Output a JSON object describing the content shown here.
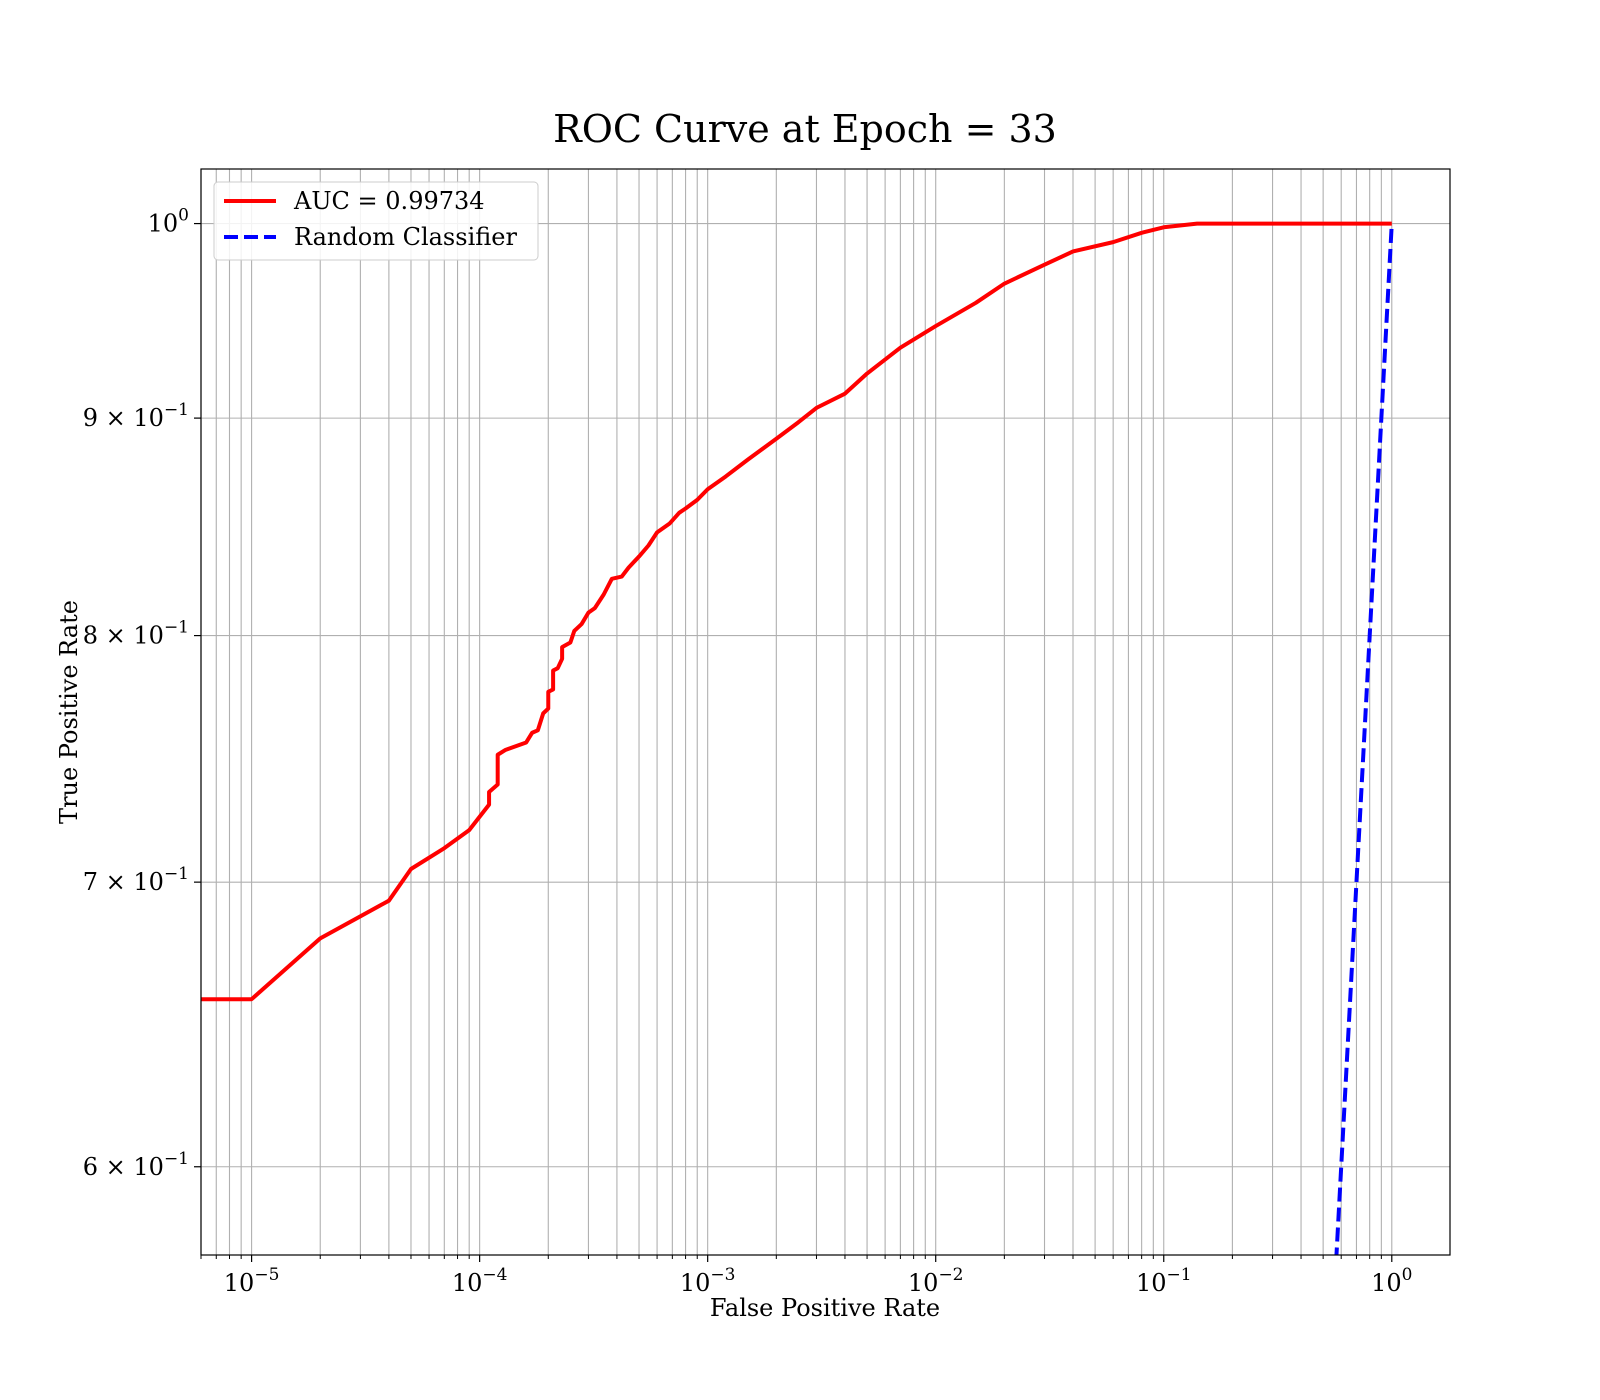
{
  "chart_data": {
    "type": "line",
    "title": "ROC Curve at Epoch = 33",
    "xlabel": "False Positive Rate",
    "ylabel": "True Positive Rate",
    "xscale": "log",
    "yscale": "log",
    "xlim": [
      6e-06,
      1.8
    ],
    "ylim": [
      0.572,
      1.03
    ],
    "grid": true,
    "grid_minor": true,
    "legend_placement": "upper left",
    "x_ticks": [
      {
        "value": 1e-05,
        "base": "10",
        "exp": "−5"
      },
      {
        "value": 0.0001,
        "base": "10",
        "exp": "−4"
      },
      {
        "value": 0.001,
        "base": "10",
        "exp": "−3"
      },
      {
        "value": 0.01,
        "base": "10",
        "exp": "−2"
      },
      {
        "value": 0.1,
        "base": "10",
        "exp": "−1"
      },
      {
        "value": 1,
        "base": "10",
        "exp": "0"
      }
    ],
    "y_ticks": [
      {
        "value": 1.0,
        "base": "10",
        "exp": "0"
      },
      {
        "value": 0.9,
        "base": "9 × 10",
        "exp": "−1"
      },
      {
        "value": 0.8,
        "base": "8 × 10",
        "exp": "−1"
      },
      {
        "value": 0.7,
        "base": "7 × 10",
        "exp": "−1"
      },
      {
        "value": 0.6,
        "base": "6 × 10",
        "exp": "−1"
      }
    ],
    "series": [
      {
        "name": "AUC = 0.99734",
        "color": "#ff0000",
        "style": "solid",
        "x": [
          6e-06,
          1e-05,
          2e-05,
          4e-05,
          5e-05,
          7e-05,
          9e-05,
          0.00011,
          0.00011,
          0.00012,
          0.00012,
          0.00013,
          0.00016,
          0.00017,
          0.00018,
          0.00019,
          0.0002,
          0.0002,
          0.00021,
          0.00021,
          0.00022,
          0.00023,
          0.00023,
          0.00025,
          0.00026,
          0.00028,
          0.0003,
          0.00032,
          0.00035,
          0.00038,
          0.00042,
          0.00045,
          0.0005,
          0.00055,
          0.0006,
          0.00068,
          0.00075,
          0.0008,
          0.0009,
          0.001,
          0.0012,
          0.0015,
          0.002,
          0.0025,
          0.003,
          0.004,
          0.005,
          0.007,
          0.01,
          0.015,
          0.02,
          0.03,
          0.04,
          0.06,
          0.08,
          0.1,
          0.14,
          1.0
        ],
        "y": [
          0.657,
          0.657,
          0.679,
          0.693,
          0.705,
          0.713,
          0.72,
          0.73,
          0.735,
          0.738,
          0.75,
          0.752,
          0.755,
          0.759,
          0.76,
          0.767,
          0.769,
          0.776,
          0.777,
          0.785,
          0.786,
          0.79,
          0.795,
          0.797,
          0.802,
          0.805,
          0.81,
          0.812,
          0.818,
          0.825,
          0.826,
          0.83,
          0.835,
          0.84,
          0.846,
          0.85,
          0.855,
          0.857,
          0.861,
          0.866,
          0.872,
          0.88,
          0.89,
          0.898,
          0.905,
          0.912,
          0.922,
          0.935,
          0.946,
          0.958,
          0.968,
          0.978,
          0.985,
          0.99,
          0.995,
          0.998,
          1.0,
          1.0
        ]
      },
      {
        "name": "Random Classifier",
        "color": "#0000ff",
        "style": "dashed",
        "x": [
          0.57,
          1.0
        ],
        "y": [
          0.57,
          1.0
        ]
      }
    ]
  }
}
